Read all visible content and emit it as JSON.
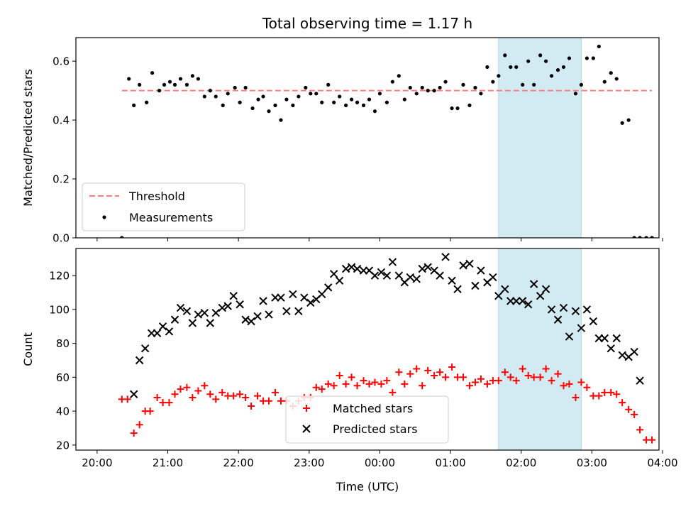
{
  "figure": {
    "title": "Total observing time = 1.17 h",
    "xlabel": "Time (UTC)",
    "highlight_color": "#add8e6"
  },
  "chart_data": [
    {
      "type": "scatter",
      "id": "ratio",
      "ylabel": "Matched/Predicted stars",
      "ylim": [
        0,
        0.68
      ],
      "yticks": [
        0.0,
        0.2,
        0.4,
        0.6
      ],
      "ytick_labels": [
        "0.0",
        "0.2",
        "0.4",
        "0.6"
      ],
      "xlim": [
        -0.3,
        7.95
      ],
      "xtick_hours": [
        0,
        1,
        2,
        3,
        4,
        5,
        6,
        7,
        8
      ],
      "threshold": {
        "name": "Threshold",
        "value": 0.5,
        "x_range": [
          0.35,
          7.85
        ],
        "color": "#ff7f7f"
      },
      "highlight": {
        "x_range": [
          5.68,
          6.85
        ]
      },
      "legend": {
        "placement": "lower-left"
      },
      "series": [
        {
          "name": "Measurements",
          "color": "#000000",
          "x": [
            0.35,
            0.45,
            0.52,
            0.6,
            0.7,
            0.78,
            0.88,
            0.95,
            1.03,
            1.1,
            1.18,
            1.27,
            1.35,
            1.43,
            1.52,
            1.6,
            1.68,
            1.78,
            1.85,
            1.95,
            2.02,
            2.1,
            2.2,
            2.28,
            2.35,
            2.43,
            2.52,
            2.6,
            2.68,
            2.77,
            2.85,
            2.95,
            3.02,
            3.1,
            3.18,
            3.27,
            3.35,
            3.43,
            3.52,
            3.6,
            3.68,
            3.77,
            3.85,
            3.93,
            4.0,
            4.1,
            4.18,
            4.27,
            4.35,
            4.43,
            4.52,
            4.6,
            4.68,
            4.77,
            4.85,
            4.93,
            5.02,
            5.1,
            5.18,
            5.27,
            5.35,
            5.43,
            5.52,
            5.6,
            5.68,
            5.77,
            5.85,
            5.93,
            6.02,
            6.1,
            6.18,
            6.27,
            6.35,
            6.43,
            6.52,
            6.6,
            6.68,
            6.77,
            6.85,
            6.93,
            7.02,
            7.1,
            7.18,
            7.27,
            7.35,
            7.43,
            7.52,
            7.6,
            7.68,
            7.77,
            7.85
          ],
          "y": [
            0.0,
            0.54,
            0.45,
            0.52,
            0.46,
            0.56,
            0.5,
            0.52,
            0.53,
            0.52,
            0.54,
            0.52,
            0.55,
            0.54,
            0.48,
            0.5,
            0.48,
            0.45,
            0.49,
            0.51,
            0.46,
            0.51,
            0.44,
            0.47,
            0.48,
            0.43,
            0.45,
            0.4,
            0.47,
            0.45,
            0.48,
            0.51,
            0.49,
            0.49,
            0.46,
            0.52,
            0.46,
            0.48,
            0.45,
            0.47,
            0.46,
            0.45,
            0.47,
            0.43,
            0.49,
            0.46,
            0.53,
            0.55,
            0.47,
            0.51,
            0.49,
            0.51,
            0.5,
            0.5,
            0.51,
            0.53,
            0.44,
            0.44,
            0.52,
            0.45,
            0.51,
            0.49,
            0.58,
            0.53,
            0.55,
            0.62,
            0.58,
            0.58,
            0.52,
            0.6,
            0.52,
            0.62,
            0.6,
            0.55,
            0.57,
            0.58,
            0.61,
            0.49,
            0.52,
            0.61,
            0.61,
            0.65,
            0.53,
            0.56,
            0.54,
            0.39,
            0.4,
            0.0,
            0.0,
            0.0,
            0.0
          ]
        }
      ]
    },
    {
      "type": "scatter",
      "id": "counts",
      "ylabel": "Count",
      "ylim": [
        17,
        136
      ],
      "yticks": [
        20,
        40,
        60,
        80,
        100,
        120
      ],
      "ytick_labels": [
        "20",
        "40",
        "60",
        "80",
        "100",
        "120"
      ],
      "xlim": [
        -0.3,
        7.95
      ],
      "xtick_hours": [
        0,
        1,
        2,
        3,
        4,
        5,
        6,
        7,
        8
      ],
      "xtick_labels": [
        "20:00",
        "21:00",
        "22:00",
        "23:00",
        "00:00",
        "01:00",
        "02:00",
        "03:00",
        "04:00"
      ],
      "highlight": {
        "x_range": [
          5.68,
          6.85
        ]
      },
      "legend": {
        "placement": "lower-center"
      },
      "series": [
        {
          "name": "Matched stars",
          "color": "#ff0000",
          "marker": "plus",
          "x": [
            0.35,
            0.43,
            0.52,
            0.6,
            0.68,
            0.75,
            0.85,
            0.93,
            1.02,
            1.1,
            1.18,
            1.27,
            1.35,
            1.43,
            1.52,
            1.6,
            1.68,
            1.77,
            1.85,
            1.93,
            2.02,
            2.1,
            2.18,
            2.27,
            2.35,
            2.43,
            2.52,
            2.6,
            2.68,
            2.77,
            2.85,
            2.93,
            3.02,
            3.1,
            3.18,
            3.27,
            3.35,
            3.43,
            3.52,
            3.6,
            3.68,
            3.77,
            3.85,
            3.93,
            4.02,
            4.1,
            4.18,
            4.27,
            4.35,
            4.43,
            4.52,
            4.6,
            4.68,
            4.77,
            4.85,
            4.93,
            5.02,
            5.1,
            5.18,
            5.27,
            5.35,
            5.43,
            5.52,
            5.6,
            5.68,
            5.77,
            5.85,
            5.93,
            6.02,
            6.1,
            6.18,
            6.27,
            6.35,
            6.43,
            6.52,
            6.6,
            6.68,
            6.77,
            6.85,
            6.93,
            7.02,
            7.1,
            7.18,
            7.27,
            7.35,
            7.43,
            7.52,
            7.6,
            7.68,
            7.77,
            7.85
          ],
          "y": [
            47,
            47,
            27,
            32,
            40,
            40,
            48,
            45,
            45,
            50,
            53,
            54,
            48,
            52,
            55,
            50,
            47,
            51,
            49,
            49,
            50,
            48,
            43,
            49,
            46,
            46,
            51,
            46,
            46,
            43,
            46,
            48,
            48,
            54,
            53,
            56,
            55,
            61,
            56,
            60,
            55,
            58,
            56,
            57,
            56,
            58,
            51,
            63,
            56,
            62,
            65,
            55,
            64,
            61,
            63,
            60,
            66,
            60,
            60,
            55,
            57,
            59,
            56,
            58,
            58,
            63,
            60,
            58,
            65,
            61,
            60,
            60,
            65,
            58,
            62,
            55,
            56,
            48,
            57,
            54,
            49,
            49,
            51,
            51,
            50,
            45,
            41,
            38,
            29,
            23,
            23
          ]
        },
        {
          "name": "Predicted stars",
          "color": "#000000",
          "marker": "x",
          "x": [
            0.52,
            0.6,
            0.68,
            0.77,
            0.85,
            0.93,
            1.02,
            1.1,
            1.18,
            1.27,
            1.35,
            1.43,
            1.52,
            1.6,
            1.68,
            1.77,
            1.85,
            1.93,
            2.02,
            2.1,
            2.18,
            2.27,
            2.35,
            2.43,
            2.52,
            2.6,
            2.68,
            2.77,
            2.85,
            2.93,
            3.02,
            3.1,
            3.18,
            3.27,
            3.35,
            3.43,
            3.52,
            3.6,
            3.68,
            3.77,
            3.85,
            3.93,
            4.02,
            4.1,
            4.18,
            4.27,
            4.35,
            4.43,
            4.52,
            4.6,
            4.68,
            4.77,
            4.85,
            4.93,
            5.02,
            5.1,
            5.18,
            5.27,
            5.35,
            5.43,
            5.52,
            5.6,
            5.68,
            5.77,
            5.85,
            5.93,
            6.02,
            6.1,
            6.18,
            6.27,
            6.35,
            6.43,
            6.52,
            6.6,
            6.68,
            6.77,
            6.85,
            6.93,
            7.02,
            7.1,
            7.18,
            7.27,
            7.35,
            7.43,
            7.52,
            7.6,
            7.68
          ],
          "y": [
            50,
            70,
            77,
            86,
            86,
            90,
            87,
            94,
            101,
            99,
            92,
            97,
            98,
            92,
            98,
            101,
            102,
            108,
            103,
            94,
            93,
            96,
            105,
            97,
            107,
            107,
            99,
            109,
            99,
            107,
            104,
            106,
            109,
            113,
            121,
            117,
            124,
            125,
            124,
            123,
            123,
            120,
            122,
            120,
            128,
            120,
            116,
            119,
            118,
            124,
            125,
            123,
            120,
            131,
            117,
            112,
            126,
            127,
            114,
            123,
            116,
            119,
            108,
            112,
            105,
            105,
            105,
            103,
            115,
            108,
            112,
            100,
            94,
            101,
            84,
            99,
            89,
            100,
            93,
            83,
            83,
            77,
            83,
            73,
            72,
            75,
            58
          ]
        }
      ]
    }
  ]
}
